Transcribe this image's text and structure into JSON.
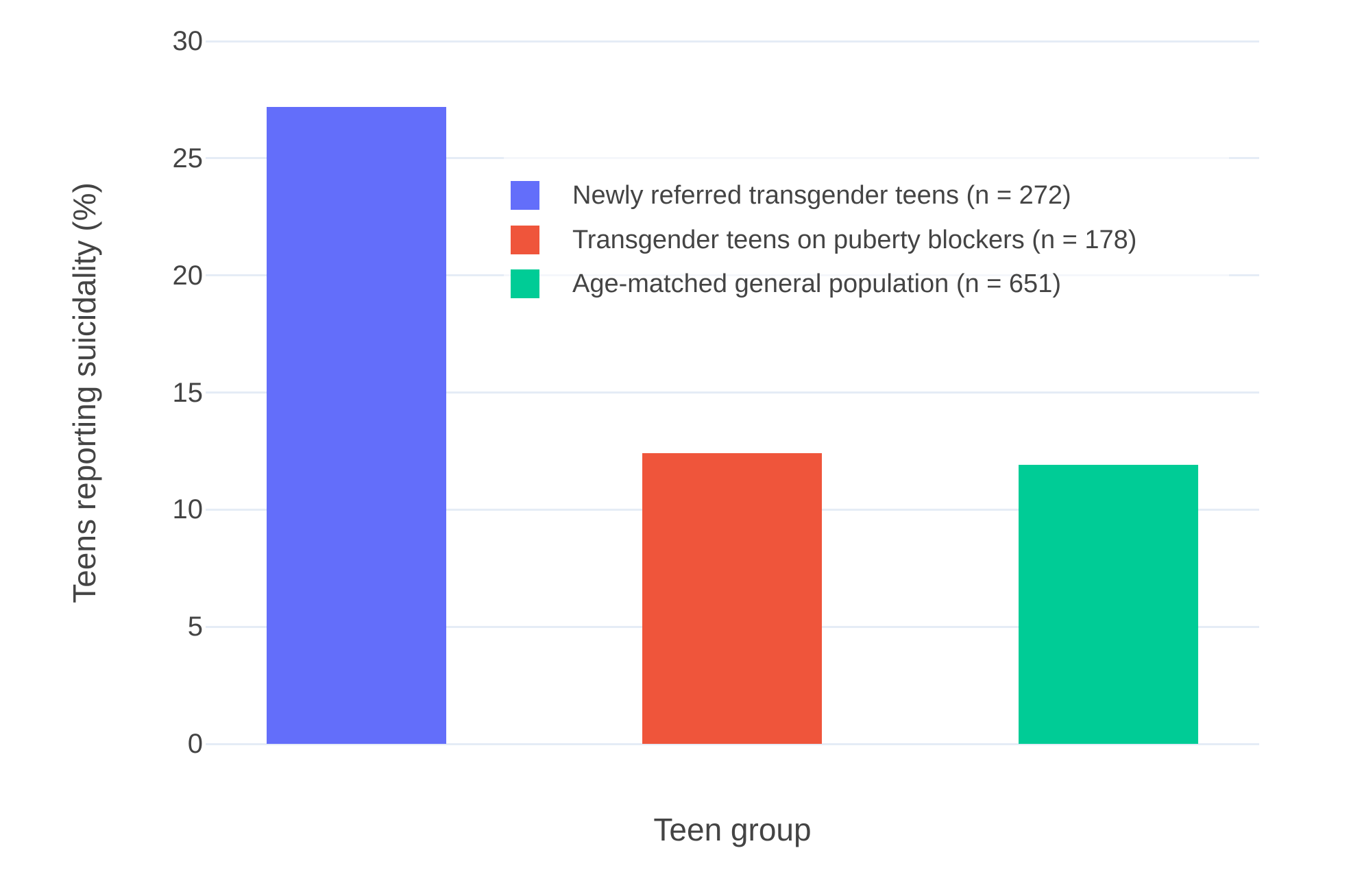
{
  "figure": {
    "background": "#ffffff",
    "text_color": "#444444",
    "grid_color": "#E5ECF6"
  },
  "chart_data": {
    "type": "bar",
    "title": "",
    "xlabel": "Teen group",
    "ylabel": "Teens reporting suicidality (%)",
    "categories": [
      "Newly referred transgender teens (n = 272)",
      "Transgender teens on puberty blockers (n = 178)",
      "Age-matched general population (n = 651)"
    ],
    "values": [
      27.2,
      12.4,
      11.9
    ],
    "colors": [
      "#636EFA",
      "#EF553B",
      "#00CC96"
    ],
    "ylim": [
      0,
      30
    ],
    "yticks": [
      0,
      5,
      10,
      15,
      20,
      25,
      30
    ],
    "grid": true,
    "legend": {
      "position": "inside-top-right",
      "items": [
        {
          "label": "Newly referred transgender teens (n = 272)",
          "color": "#636EFA"
        },
        {
          "label": "Transgender teens on puberty blockers (n = 178)",
          "color": "#EF553B"
        },
        {
          "label": "Age-matched general population (n = 651)",
          "color": "#00CC96"
        }
      ]
    }
  }
}
